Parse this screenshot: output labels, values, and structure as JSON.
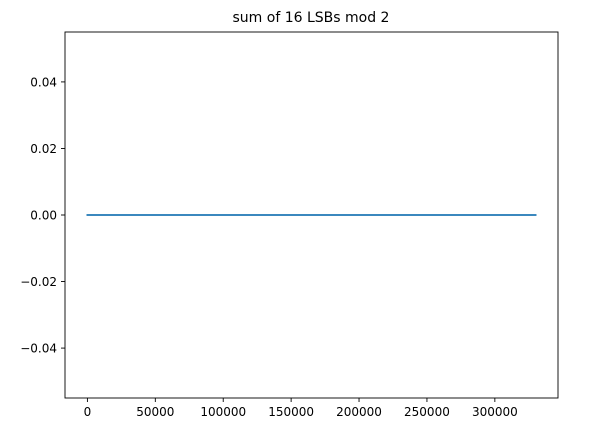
{
  "chart_data": {
    "type": "line",
    "title": "sum of 16 LSBs mod 2",
    "xlabel": "",
    "ylabel": "",
    "xlim": [
      -16500,
      346500
    ],
    "ylim": [
      -0.055,
      0.055
    ],
    "x_ticks": [
      {
        "value": 0,
        "label": "0"
      },
      {
        "value": 50000,
        "label": "50000"
      },
      {
        "value": 100000,
        "label": "100000"
      },
      {
        "value": 150000,
        "label": "150000"
      },
      {
        "value": 200000,
        "label": "200000"
      },
      {
        "value": 250000,
        "label": "250000"
      },
      {
        "value": 300000,
        "label": "300000"
      }
    ],
    "y_ticks": [
      {
        "value": 0.04,
        "label": "0.04"
      },
      {
        "value": 0.02,
        "label": "0.02"
      },
      {
        "value": 0.0,
        "label": "0.00"
      },
      {
        "value": -0.02,
        "label": "−0.02"
      },
      {
        "value": -0.04,
        "label": "−0.04"
      }
    ],
    "grid": false,
    "series": [
      {
        "color": "#1f77b4",
        "x": [
          0,
          330000
        ],
        "y": [
          0,
          0
        ]
      }
    ]
  }
}
